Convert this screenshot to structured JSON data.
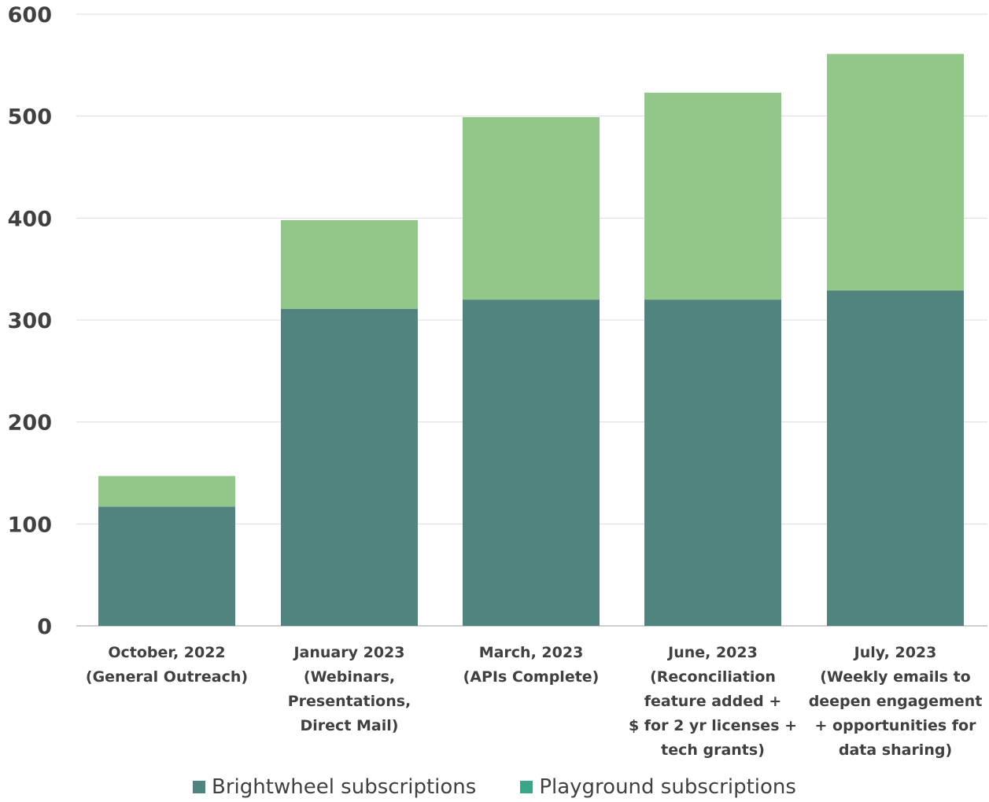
{
  "chart_data": {
    "type": "bar",
    "stacked": true,
    "title": "",
    "xlabel": "",
    "ylabel": "",
    "ylim": [
      0,
      600
    ],
    "y_ticks": [
      0,
      100,
      200,
      300,
      400,
      500,
      600
    ],
    "grid": true,
    "legend_position": "bottom",
    "categories": [
      [
        "October, 2022",
        "(General Outreach)"
      ],
      [
        "January 2023",
        "(Webinars,",
        "Presentations,",
        "Direct Mail)"
      ],
      [
        "March, 2023",
        "(APIs Complete)"
      ],
      [
        "June, 2023",
        "(Reconciliation",
        "feature added +",
        "$ for 2 yr licenses +",
        "tech grants)"
      ],
      [
        "July, 2023",
        "(Weekly emails to",
        "deepen engagement",
        "+ opportunities for",
        "data sharing)"
      ]
    ],
    "series": [
      {
        "name": "Brightwheel subscriptions",
        "color": "#51837f",
        "values": [
          117,
          311,
          320,
          320,
          329
        ]
      },
      {
        "name": "Playground subscriptions",
        "color": "#93c689",
        "values": [
          30,
          87,
          179,
          203,
          232
        ]
      }
    ],
    "legend_swatch_colors": [
      "#51837f",
      "#3aa687"
    ]
  }
}
